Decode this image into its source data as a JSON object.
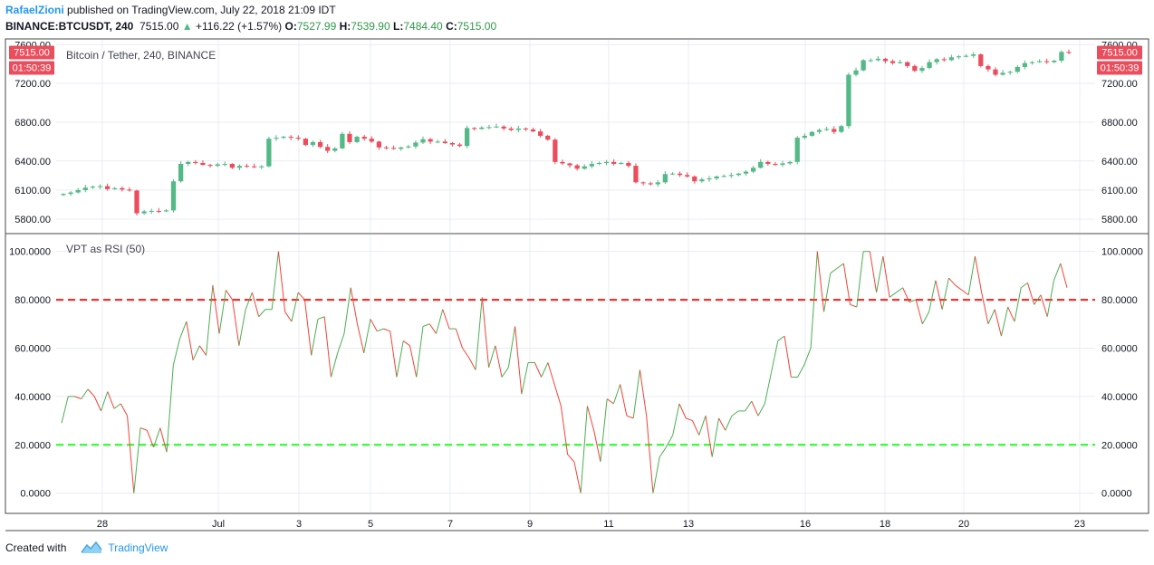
{
  "header": {
    "author": "RafaelZioni",
    "published_text": "published on TradingView.com, July 22, 2018 21:09 IDT",
    "symbol": "BINANCE:BTCUSDT, 240",
    "last": "7515.00",
    "change_arrow": "▲",
    "change": "+116.22 (+1.57%)",
    "o_label": "O:",
    "o_value": "7527.99",
    "h_label": "H:",
    "h_value": "7539.90",
    "l_label": "L:",
    "l_value": "7484.40",
    "c_label": "C:",
    "c_value": "7515.00"
  },
  "footer": {
    "created_with": "Created with",
    "brand": "TradingView"
  },
  "colors": {
    "up": "#53b987",
    "down": "#eb4d5c",
    "rsi_up": "#4caf50",
    "rsi_down": "#f44336",
    "overbought_line": "#ff1a1a",
    "oversold_line": "#1aff1a",
    "badge": "#eb4d5c"
  },
  "chart_data": [
    {
      "type": "candlestick",
      "title": "Bitcoin / Tether, 240, BINANCE",
      "ylim": [
        5660,
        7650
      ],
      "yticks": [
        "5800.00",
        "6100.00",
        "6400.00",
        "6800.00",
        "7200.00",
        "7600.00"
      ],
      "ytick_values": [
        5800,
        6100,
        6400,
        6800,
        7200,
        7600
      ],
      "price_badge": "7515.00",
      "countdown_badge": "01:50:39",
      "x_labels": [
        "28",
        "Jul",
        "3",
        "5",
        "7",
        "9",
        "11",
        "13",
        "16",
        "18",
        "20",
        "23"
      ],
      "candles_close": [
        6060,
        6075,
        6100,
        6125,
        6135,
        6140,
        6110,
        6120,
        6105,
        6095,
        5860,
        5880,
        5885,
        5880,
        5890,
        6190,
        6370,
        6390,
        6380,
        6360,
        6350,
        6365,
        6370,
        6330,
        6350,
        6345,
        6335,
        6345,
        6630,
        6640,
        6650,
        6640,
        6630,
        6565,
        6595,
        6545,
        6505,
        6530,
        6680,
        6595,
        6650,
        6630,
        6600,
        6540,
        6535,
        6525,
        6540,
        6550,
        6590,
        6625,
        6600,
        6600,
        6585,
        6570,
        6555,
        6740,
        6730,
        6745,
        6750,
        6755,
        6735,
        6720,
        6735,
        6725,
        6705,
        6660,
        6620,
        6390,
        6375,
        6355,
        6320,
        6345,
        6370,
        6380,
        6390,
        6370,
        6380,
        6350,
        6180,
        6170,
        6160,
        6180,
        6265,
        6270,
        6255,
        6240,
        6190,
        6210,
        6220,
        6240,
        6245,
        6255,
        6270,
        6290,
        6330,
        6390,
        6370,
        6360,
        6375,
        6390,
        6640,
        6660,
        6700,
        6720,
        6730,
        6700,
        6760,
        7290,
        7335,
        7440,
        7440,
        7455,
        7430,
        7410,
        7420,
        7380,
        7330,
        7360,
        7420,
        7450,
        7440,
        7470,
        7480,
        7485,
        7500,
        7380,
        7345,
        7290,
        7310,
        7320,
        7370,
        7410,
        7420,
        7430,
        7420,
        7435,
        7525,
        7515
      ]
    },
    {
      "type": "line",
      "title": "VPT as RSI (50)",
      "ylim": [
        -8,
        107
      ],
      "yticks": [
        "0.0000",
        "20.0000",
        "40.0000",
        "60.0000",
        "80.0000",
        "100.0000"
      ],
      "ytick_values": [
        0,
        20,
        40,
        60,
        80,
        100
      ],
      "hlines": [
        80,
        20
      ],
      "values": [
        29,
        40,
        40,
        39,
        43,
        40,
        34,
        42,
        35,
        37,
        32,
        0,
        27,
        26,
        19,
        27,
        17,
        53,
        64,
        71,
        55,
        61,
        57,
        86,
        66,
        84,
        80,
        61,
        76,
        83,
        73,
        76,
        76,
        100,
        75,
        71,
        83,
        80,
        57,
        72,
        73,
        48,
        58,
        66,
        85,
        70,
        58,
        72,
        67,
        68,
        67,
        48,
        63,
        61,
        48,
        69,
        70,
        66,
        76,
        68,
        68,
        60,
        56,
        51,
        81,
        52,
        61,
        48,
        52,
        69,
        41,
        54,
        54,
        48,
        54,
        45,
        36,
        16,
        13,
        0,
        36,
        26,
        13,
        39,
        37,
        45,
        32,
        31,
        51,
        32,
        0,
        15,
        19,
        24,
        37,
        31,
        30,
        24,
        32,
        15,
        31,
        26,
        32,
        34,
        34,
        38,
        32,
        37,
        50,
        63,
        65,
        48,
        48,
        53,
        60,
        100,
        75,
        91,
        93,
        95,
        78,
        77,
        100,
        100,
        83,
        98,
        81,
        83,
        85,
        79,
        80,
        70,
        75,
        88,
        76,
        89,
        86,
        84,
        82,
        98,
        83,
        70,
        76,
        65,
        77,
        71,
        85,
        87,
        78,
        82,
        73,
        88,
        95,
        85
      ]
    }
  ]
}
